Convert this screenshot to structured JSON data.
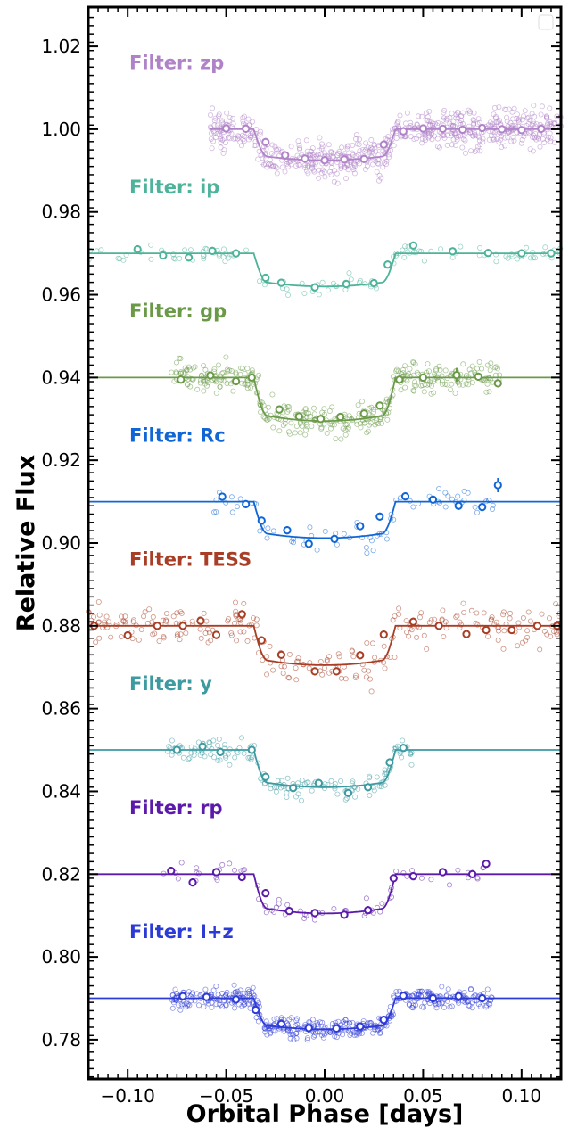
{
  "chart_data": {
    "type": "scatter",
    "title": "",
    "xlabel": "Orbital Phase [days]",
    "ylabel": "Relative Flux",
    "xlim": [
      -0.12,
      0.12
    ],
    "ylim": [
      0.7705,
      1.0295
    ],
    "x_ticks": [
      -0.1,
      -0.05,
      0.0,
      0.05,
      0.1
    ],
    "x_tick_labels": [
      "−0.10",
      "−0.05",
      "0.00",
      "0.05",
      "0.10"
    ],
    "y_ticks": [
      0.78,
      0.8,
      0.82,
      0.84,
      0.86,
      0.88,
      0.9,
      0.92,
      0.94,
      0.96,
      0.98,
      1.0,
      1.02
    ],
    "y_tick_labels": [
      "0.78",
      "0.80",
      "0.82",
      "0.84",
      "0.86",
      "0.88",
      "0.90",
      "0.92",
      "0.94",
      "0.96",
      "0.98",
      "1.00",
      "1.02"
    ],
    "grid": false,
    "legend": "top-right (empty)",
    "series": [
      {
        "name": "Filter: zp",
        "color": "#b083c8",
        "baseline": 1.0,
        "depth": 0.0075,
        "x_start": -0.058,
        "x_end": 0.12,
        "binned": [
          [
            -0.05,
            1.0002
          ],
          [
            -0.04,
            1.0001
          ],
          [
            -0.03,
            0.9969
          ],
          [
            -0.02,
            0.9937
          ],
          [
            -0.01,
            0.9929
          ],
          [
            0.0,
            0.9925
          ],
          [
            0.01,
            0.9927
          ],
          [
            0.02,
            0.9928
          ],
          [
            0.03,
            0.9963
          ],
          [
            0.04,
            0.9995
          ],
          [
            0.05,
            1.0002
          ],
          [
            0.06,
            1.0001
          ],
          [
            0.07,
            0.9999
          ],
          [
            0.08,
            1.0003
          ],
          [
            0.09,
            1.0
          ],
          [
            0.1,
            0.9998
          ],
          [
            0.11,
            1.0001
          ]
        ]
      },
      {
        "name": "Filter: ip",
        "color": "#4db39a",
        "baseline": 0.97,
        "depth": 0.008,
        "x_start": -0.12,
        "x_end": 0.12,
        "binned": [
          [
            -0.095,
            0.971
          ],
          [
            -0.082,
            0.9695
          ],
          [
            -0.069,
            0.969
          ],
          [
            -0.057,
            0.9706
          ],
          [
            -0.045,
            0.97
          ],
          [
            -0.03,
            0.9641
          ],
          [
            -0.022,
            0.9629
          ],
          [
            -0.005,
            0.9618
          ],
          [
            0.011,
            0.9626
          ],
          [
            0.025,
            0.9628
          ],
          [
            0.032,
            0.9673
          ],
          [
            0.045,
            0.9719
          ],
          [
            0.065,
            0.9705
          ],
          [
            0.083,
            0.9701
          ],
          [
            0.1,
            0.97
          ],
          [
            0.115,
            0.97
          ]
        ]
      },
      {
        "name": "Filter: gp",
        "color": "#6a9a48",
        "baseline": 0.94,
        "depth": 0.0105,
        "x_start": -0.12,
        "x_end": 0.12,
        "binned": [
          [
            -0.073,
            0.9395
          ],
          [
            -0.058,
            0.9405
          ],
          [
            -0.045,
            0.9391
          ],
          [
            -0.037,
            0.94
          ],
          [
            -0.023,
            0.9323
          ],
          [
            -0.013,
            0.9306
          ],
          [
            -0.002,
            0.93
          ],
          [
            0.008,
            0.9305
          ],
          [
            0.02,
            0.9313
          ],
          [
            0.028,
            0.9332
          ],
          [
            0.038,
            0.9395
          ],
          [
            0.05,
            0.94
          ],
          [
            0.067,
            0.9406
          ],
          [
            0.078,
            0.9402
          ],
          [
            0.088,
            0.9386
          ]
        ]
      },
      {
        "name": "Filter: Rc",
        "color": "#1166d6",
        "baseline": 0.91,
        "depth": 0.0088,
        "x_start": -0.12,
        "x_end": 0.12,
        "binned": [
          [
            -0.052,
            0.9112
          ],
          [
            -0.04,
            0.9094
          ],
          [
            -0.032,
            0.9054
          ],
          [
            -0.019,
            0.9031
          ],
          [
            -0.008,
            0.8998
          ],
          [
            0.005,
            0.901
          ],
          [
            0.018,
            0.9041
          ],
          [
            0.028,
            0.9064
          ],
          [
            0.041,
            0.9113
          ],
          [
            0.055,
            0.9105
          ],
          [
            0.068,
            0.909
          ],
          [
            0.08,
            0.9087
          ],
          [
            0.088,
            0.914
          ]
        ]
      },
      {
        "name": "Filter: TESS",
        "color": "#a83e25",
        "baseline": 0.88,
        "depth": 0.0095,
        "x_start": -0.12,
        "x_end": 0.12,
        "binned": [
          [
            -0.117,
            0.88
          ],
          [
            -0.1,
            0.8777
          ],
          [
            -0.085,
            0.88
          ],
          [
            -0.072,
            0.88
          ],
          [
            -0.063,
            0.8812
          ],
          [
            -0.055,
            0.8778
          ],
          [
            -0.042,
            0.8828
          ],
          [
            -0.032,
            0.8765
          ],
          [
            -0.022,
            0.873
          ],
          [
            -0.005,
            0.869
          ],
          [
            0.006,
            0.869
          ],
          [
            0.018,
            0.8729
          ],
          [
            0.03,
            0.8779
          ],
          [
            0.045,
            0.881
          ],
          [
            0.058,
            0.88
          ],
          [
            0.072,
            0.878
          ],
          [
            0.082,
            0.879
          ],
          [
            0.095,
            0.879
          ],
          [
            0.108,
            0.88
          ],
          [
            0.118,
            0.88
          ]
        ]
      },
      {
        "name": "Filter: y",
        "color": "#3c9aa0",
        "baseline": 0.85,
        "depth": 0.009,
        "x_start": -0.12,
        "x_end": 0.12,
        "binned": [
          [
            -0.075,
            0.85
          ],
          [
            -0.062,
            0.8508
          ],
          [
            -0.053,
            0.8495
          ],
          [
            -0.037,
            0.85
          ],
          [
            -0.03,
            0.8435
          ],
          [
            -0.016,
            0.8408
          ],
          [
            -0.003,
            0.842
          ],
          [
            0.012,
            0.8396
          ],
          [
            0.022,
            0.841
          ],
          [
            0.033,
            0.847
          ],
          [
            0.04,
            0.8505
          ]
        ]
      },
      {
        "name": "Filter: rp",
        "color": "#5b1aaa",
        "baseline": 0.82,
        "depth": 0.0095,
        "x_start": -0.12,
        "x_end": 0.12,
        "binned": [
          [
            -0.078,
            0.8208
          ],
          [
            -0.067,
            0.818
          ],
          [
            -0.055,
            0.8205
          ],
          [
            -0.042,
            0.8193
          ],
          [
            -0.03,
            0.8154
          ],
          [
            -0.018,
            0.8111
          ],
          [
            -0.005,
            0.8106
          ],
          [
            0.01,
            0.8102
          ],
          [
            0.022,
            0.8113
          ],
          [
            0.035,
            0.819
          ],
          [
            0.045,
            0.8195
          ],
          [
            0.06,
            0.8205
          ],
          [
            0.075,
            0.82
          ],
          [
            0.082,
            0.8225
          ]
        ]
      },
      {
        "name": "Filter: I+z",
        "color": "#2d3bd6",
        "baseline": 0.79,
        "depth": 0.0075,
        "x_start": -0.12,
        "x_end": 0.12,
        "binned": [
          [
            -0.072,
            0.7905
          ],
          [
            -0.06,
            0.7903
          ],
          [
            -0.045,
            0.7897
          ],
          [
            -0.035,
            0.7872
          ],
          [
            -0.022,
            0.7838
          ],
          [
            -0.008,
            0.7828
          ],
          [
            0.006,
            0.7827
          ],
          [
            0.018,
            0.7832
          ],
          [
            0.03,
            0.7848
          ],
          [
            0.04,
            0.7906
          ],
          [
            0.055,
            0.79
          ],
          [
            0.068,
            0.7905
          ],
          [
            0.08,
            0.79
          ]
        ]
      }
    ]
  }
}
